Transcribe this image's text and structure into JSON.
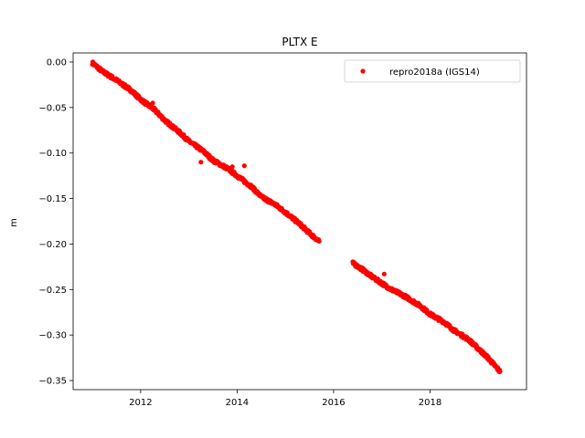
{
  "chart_data": {
    "type": "scatter",
    "title": "PLTX E",
    "xlabel": "",
    "ylabel": "m",
    "xlim": [
      2010.6,
      2020.0
    ],
    "ylim": [
      -0.36,
      0.01
    ],
    "xticks": [
      2012,
      2014,
      2016,
      2018
    ],
    "xtick_labels": [
      "2012",
      "2014",
      "2016",
      "2018"
    ],
    "yticks": [
      0.0,
      -0.05,
      -0.1,
      -0.15,
      -0.2,
      -0.25,
      -0.3,
      -0.35
    ],
    "ytick_labels": [
      "0.00",
      "−0.05",
      "−0.10",
      "−0.15",
      "−0.20",
      "−0.25",
      "−0.30",
      "−0.35"
    ],
    "grid": false,
    "legend": {
      "placement": "top-right",
      "entries": [
        "repro2018a (IGS14)"
      ]
    },
    "series": [
      {
        "name": "repro2018a (IGS14)",
        "color": "#ff0000",
        "marker": "circle",
        "segments": [
          {
            "x": [
              2011.0,
              2011.2,
              2011.5,
              2011.8,
              2012.0,
              2012.3,
              2012.5,
              2012.8,
              2013.0,
              2013.3,
              2013.5,
              2013.8,
              2014.0,
              2014.3,
              2014.5,
              2014.8,
              2015.0,
              2015.3,
              2015.5,
              2015.7
            ],
            "y": [
              -0.001,
              -0.01,
              -0.02,
              -0.031,
              -0.041,
              -0.053,
              -0.064,
              -0.077,
              -0.087,
              -0.098,
              -0.108,
              -0.117,
              -0.125,
              -0.137,
              -0.148,
              -0.157,
              -0.165,
              -0.178,
              -0.188,
              -0.197
            ]
          },
          {
            "x": [
              2016.4,
              2016.6,
              2016.8,
              2017.0,
              2017.2,
              2017.5,
              2017.8,
              2018.0,
              2018.3,
              2018.5,
              2018.8,
              2019.0,
              2019.2,
              2019.45
            ],
            "y": [
              -0.221,
              -0.228,
              -0.236,
              -0.243,
              -0.25,
              -0.258,
              -0.268,
              -0.277,
              -0.286,
              -0.295,
              -0.305,
              -0.315,
              -0.325,
              -0.34
            ]
          }
        ],
        "outliers": {
          "x": [
            2012.25,
            2013.25,
            2013.9,
            2014.15,
            2017.05,
            2019.05
          ],
          "y": [
            -0.045,
            -0.11,
            -0.115,
            -0.114,
            -0.233,
            -0.318
          ]
        }
      }
    ]
  }
}
